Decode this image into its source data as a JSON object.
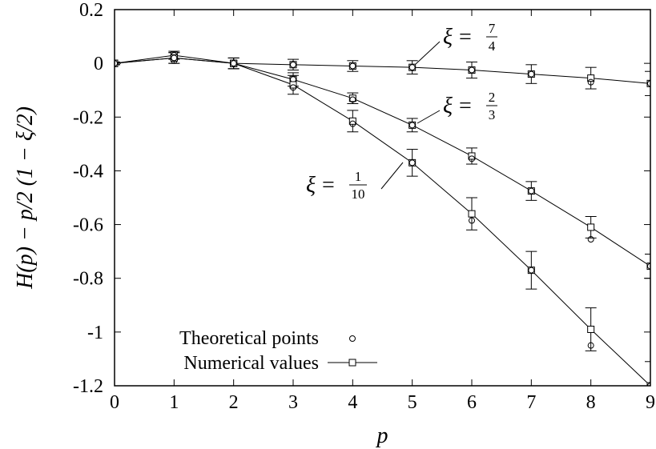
{
  "chart_data": {
    "type": "line",
    "xlabel": "p",
    "ylabel": "H(p) − p/2 (1 − ξ/2)",
    "xlim": [
      0,
      9
    ],
    "ylim": [
      -1.2,
      0.2
    ],
    "x_ticks": [
      "0",
      "1",
      "2",
      "3",
      "4",
      "5",
      "6",
      "7",
      "8",
      "9"
    ],
    "y_ticks": [
      "0.2",
      "0",
      "-0.2",
      "-0.4",
      "-0.6",
      "-0.8",
      "-1",
      "-1.2"
    ],
    "grid": false,
    "legend_position": "bottom-left",
    "legend": {
      "theoretical": "Theoretical points",
      "numerical": "Numerical values"
    },
    "series": [
      {
        "name": "ξ = 7/4",
        "xi_num": "7",
        "xi_den": "4",
        "x": [
          0,
          1,
          2,
          3,
          4,
          5,
          6,
          7,
          8,
          9
        ],
        "numerical": [
          0,
          0.02,
          0,
          -0.005,
          -0.01,
          -0.015,
          -0.025,
          -0.04,
          -0.055,
          -0.075
        ],
        "error": [
          0.005,
          0.02,
          0.02,
          0.02,
          0.02,
          0.025,
          0.03,
          0.035,
          0.04,
          0.045
        ],
        "theoretical": [
          0,
          0.01,
          0,
          -0.005,
          -0.01,
          -0.015,
          -0.025,
          -0.04,
          -0.07,
          -0.075
        ]
      },
      {
        "name": "ξ = 2/3",
        "xi_num": "2",
        "xi_den": "3",
        "x": [
          0,
          1,
          2,
          3,
          4,
          5,
          6,
          7,
          8,
          9
        ],
        "numerical": [
          0,
          0.03,
          0,
          -0.06,
          -0.13,
          -0.23,
          -0.345,
          -0.475,
          -0.61,
          -0.755
        ],
        "error": [
          0.005,
          0.015,
          0.02,
          0.025,
          0.02,
          0.025,
          0.03,
          0.035,
          0.04,
          0.045
        ],
        "theoretical": [
          0,
          0.03,
          0,
          -0.06,
          -0.135,
          -0.23,
          -0.355,
          -0.475,
          -0.655,
          -0.755
        ]
      },
      {
        "name": "ξ = 1/10",
        "xi_num": "1",
        "xi_den": "10",
        "x": [
          0,
          1,
          2,
          3,
          4,
          5,
          6,
          7,
          8,
          9
        ],
        "numerical": [
          0,
          0.02,
          0,
          -0.08,
          -0.215,
          -0.37,
          -0.56,
          -0.77,
          -0.99,
          -1.2
        ],
        "error": [
          0.005,
          0.02,
          0.02,
          0.035,
          0.04,
          0.05,
          0.06,
          0.07,
          0.08,
          0.09
        ],
        "theoretical": [
          0,
          0.02,
          0,
          -0.09,
          -0.225,
          -0.37,
          -0.585,
          -0.77,
          -1.05,
          -1.2
        ]
      }
    ]
  }
}
